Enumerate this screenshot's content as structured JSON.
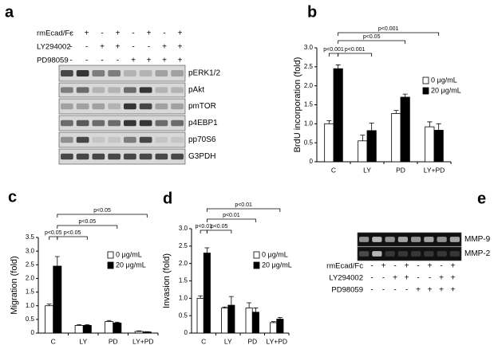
{
  "blots": [
    {
      "panel": "a",
      "treatments": [
        {
          "name": "rmEcad/Fc",
          "signs": [
            "-",
            "+",
            "-",
            "+",
            "-",
            "+",
            "-",
            "+"
          ]
        },
        {
          "name": "LY294002",
          "signs": [
            "-",
            "-",
            "+",
            "+",
            "-",
            "-",
            "+",
            "+"
          ]
        },
        {
          "name": "PD98059",
          "signs": [
            "-",
            "-",
            "-",
            "-",
            "+",
            "+",
            "+",
            "+"
          ]
        }
      ],
      "bands": [
        "pERK1/2",
        "pAkt",
        "pmTOR",
        "p4EBP1",
        "pp70S6",
        "G3PDH"
      ]
    },
    {
      "panel": "e",
      "treatments": [
        {
          "name": "rmEcad/Fc",
          "signs": [
            "-",
            "+",
            "-",
            "+",
            "-",
            "+",
            "-",
            "+"
          ]
        },
        {
          "name": "LY294002",
          "signs": [
            "-",
            "-",
            "+",
            "+",
            "-",
            "-",
            "+",
            "+"
          ]
        },
        {
          "name": "PD98059",
          "signs": [
            "-",
            "-",
            "-",
            "-",
            "+",
            "+",
            "+",
            "+"
          ]
        }
      ],
      "bands": [
        "MMP-9",
        "MMP-2"
      ]
    }
  ],
  "chart_data": [
    {
      "type": "bar",
      "panel": "b",
      "y_label": "BrdU incorporation (fold)",
      "categories": [
        "C",
        "LY",
        "PD",
        "LY+PD"
      ],
      "series": [
        {
          "name": "0 μg/mL",
          "color": "#ffffff",
          "values": [
            1.0,
            0.55,
            1.27,
            0.92
          ],
          "errors": [
            0.08,
            0.15,
            0.08,
            0.13
          ]
        },
        {
          "name": "20 μg/mL",
          "color": "#000000",
          "values": [
            2.45,
            0.82,
            1.7,
            0.83
          ],
          "errors": [
            0.1,
            0.2,
            0.08,
            0.17
          ]
        }
      ],
      "ylim": [
        0,
        3
      ],
      "yticks": [
        0,
        0.5,
        {
          "value": 1,
          "label": "1.0"
        },
        1.5,
        {
          "value": 2,
          "label": "2.0"
        },
        2.5,
        {
          "value": 3,
          "label": "3.0"
        }
      ],
      "annotations": [
        "p<0.001",
        "p<0.001",
        "p<0.05",
        "p<0.001"
      ]
    },
    {
      "type": "bar",
      "panel": "c",
      "y_label": "Migration (fold)",
      "categories": [
        "C",
        "LY",
        "PD",
        "LY+PD"
      ],
      "series": [
        {
          "name": "0 μg/mL",
          "color": "#ffffff",
          "values": [
            1.0,
            0.28,
            0.42,
            0.06
          ],
          "errors": [
            0.06,
            0.03,
            0.04,
            0.02
          ]
        },
        {
          "name": "20 μg/mL",
          "color": "#000000",
          "values": [
            2.45,
            0.28,
            0.37,
            0.04
          ],
          "errors": [
            0.35,
            0.03,
            0.03,
            0.01
          ]
        }
      ],
      "ylim": [
        0,
        3.5
      ],
      "yticks": [
        0,
        0.5,
        {
          "value": 1,
          "label": "1.0"
        },
        1.5,
        {
          "value": 2,
          "label": "2.0"
        },
        2.5,
        {
          "value": 3,
          "label": "3.0"
        },
        3.5
      ],
      "annotations": [
        "p<0.05",
        "p<0.05",
        "p<0.05",
        "p<0.05"
      ]
    },
    {
      "type": "bar",
      "panel": "d",
      "y_label": "Invasion (fold)",
      "categories": [
        "C",
        "LY",
        "PD",
        "LY+PD"
      ],
      "series": [
        {
          "name": "0 μg/mL",
          "color": "#ffffff",
          "values": [
            1.0,
            0.72,
            0.72,
            0.3
          ],
          "errors": [
            0.07,
            0.03,
            0.15,
            0.03
          ]
        },
        {
          "name": "20 μg/mL",
          "color": "#000000",
          "values": [
            2.3,
            0.8,
            0.6,
            0.4
          ],
          "errors": [
            0.15,
            0.25,
            0.12,
            0.05
          ]
        }
      ],
      "ylim": [
        0,
        3
      ],
      "yticks": [
        0,
        0.5,
        {
          "value": 1,
          "label": "1.0"
        },
        1.5,
        {
          "value": 2,
          "label": "2.0"
        },
        2.5,
        {
          "value": 3,
          "label": "3.0"
        }
      ],
      "annotations": [
        "p<0.01",
        "p<0.05",
        "p<0.01",
        "p<0.01"
      ]
    }
  ]
}
